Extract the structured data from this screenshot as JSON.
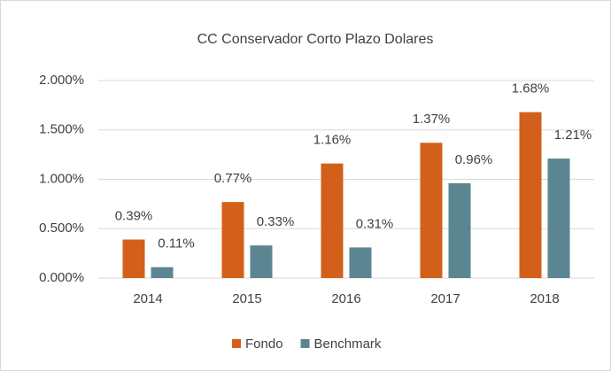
{
  "chart_data": {
    "type": "bar",
    "title": "CC Conservador Corto Plazo Dolares",
    "categories": [
      "2014",
      "2015",
      "2016",
      "2017",
      "2018"
    ],
    "series": [
      {
        "name": "Fondo",
        "color": "#d2601a",
        "values": [
          0.39,
          0.77,
          1.16,
          1.37,
          1.68
        ],
        "value_labels": [
          "0.39%",
          "0.77%",
          "1.16%",
          "1.37%",
          "1.68%"
        ]
      },
      {
        "name": "Benchmark",
        "color": "#5b8590",
        "values": [
          0.11,
          0.33,
          0.31,
          0.96,
          1.21
        ],
        "value_labels": [
          "0.11%",
          "0.33%",
          "0.31%",
          "0.96%",
          "1.21%"
        ]
      }
    ],
    "ylim": [
      0,
      2
    ],
    "yticks": [
      {
        "value": 0,
        "label": "0.000%"
      },
      {
        "value": 0.5,
        "label": "0.500%"
      },
      {
        "value": 1,
        "label": "1.000%"
      },
      {
        "value": 1.5,
        "label": "1.500%"
      },
      {
        "value": 2,
        "label": "2.000%"
      }
    ],
    "grid": true,
    "legend": "bottom"
  }
}
